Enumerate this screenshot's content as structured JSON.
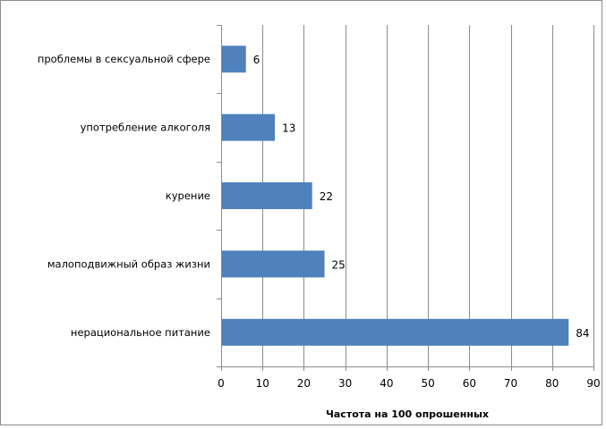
{
  "chart_data": {
    "type": "bar",
    "orientation": "horizontal",
    "categories": [
      "проблемы в сексуальной сфере",
      "употребление алкоголя",
      "курение",
      "малоподвижный образ жизни",
      "нерациональное питание"
    ],
    "values": [
      6,
      13,
      22,
      25,
      84
    ],
    "data_labels": [
      "6",
      "13",
      "22",
      "25",
      "84"
    ],
    "xlabel": "Частота на 100 опрошенных",
    "xlim": [
      0,
      90
    ],
    "xticks": [
      0,
      10,
      20,
      30,
      40,
      50,
      60,
      70,
      80,
      90
    ],
    "xtick_labels": [
      "0",
      "10",
      "20",
      "30",
      "40",
      "50",
      "60",
      "70",
      "80",
      "90"
    ],
    "grid": "vertical",
    "bar_color": "#4f81bd",
    "grid_color": "#8c8c8c"
  }
}
